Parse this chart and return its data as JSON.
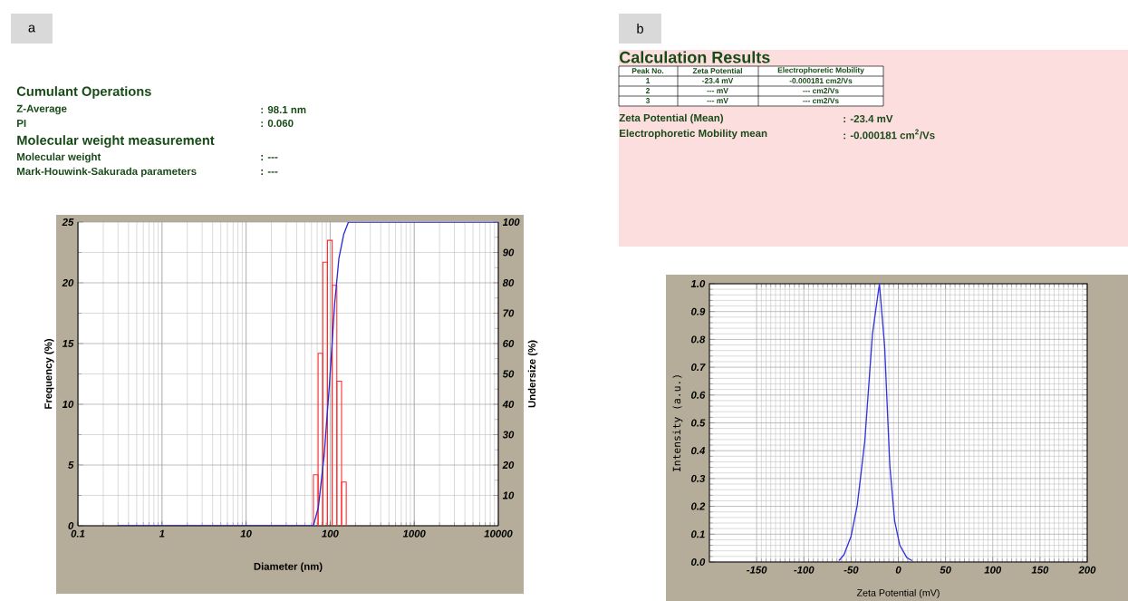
{
  "chart_data": [
    {
      "type": "other",
      "title": "a",
      "annotations": [
        "Cumulant Operations",
        "Z-Average",
        ": 98.1 nm",
        "PI",
        ": 0.060",
        "Molecular weight measurement",
        "Molecular weight",
        ": ---",
        "Mark-Houwink-Sakurada parameters",
        ": ---"
      ]
    },
    {
      "type": "histogram",
      "bins": [
        63.2,
        71.9,
        81.7,
        92.9,
        105.6,
        120.1,
        136.6,
        155.3
      ],
      "values": [
        4.2,
        14.2,
        21.7,
        23.5,
        19.8,
        11.9,
        3.6
      ],
      "color": "#ff2a2a",
      "series": [
        {
          "type": "line",
          "axis": "y2",
          "color": "#2b2bd6",
          "x": [
            0.3,
            63.2,
            72.3,
            84.7,
            98.3,
            113,
            127,
            145,
            165,
            10000
          ],
          "values": [
            0,
            0,
            6,
            23,
            47,
            73,
            88,
            96,
            100,
            100
          ]
        }
      ],
      "xlabel": "Diameter (nm)",
      "ylabel": "Frequency (%)",
      "y2label": "Undersize (%)",
      "log": "x",
      "xlim": [
        0.1,
        10000
      ],
      "xticks": [
        0.1,
        1,
        10,
        100,
        1000,
        10000
      ],
      "ylim": [
        0,
        25
      ],
      "yticks": [
        0,
        5,
        10,
        15,
        20,
        25
      ],
      "y2lim": [
        0,
        100
      ],
      "y2ticks": [
        10,
        20,
        30,
        40,
        50,
        60,
        70,
        80,
        90,
        100
      ],
      "grid": true,
      "marker": "none",
      "line_style": "solid"
    },
    {
      "type": "other",
      "title": "b",
      "annotations": [
        "Calculation Results",
        "Peak No.",
        "Zeta Potential",
        "Electrophoretic Mobility",
        "1",
        "-23.4 mV",
        "-0.000181 cm2/Vs",
        "2",
        "--- mV",
        "--- cm2/Vs",
        "3",
        "--- mV",
        "--- cm2/Vs",
        "Zeta Potential (Mean)",
        ": -23.4 mV",
        "Electrophoretic Mobility mean",
        ": -0.000181 cm$^{2}$/Vs"
      ]
    },
    {
      "type": "line",
      "x": [
        -62.9,
        -57.4,
        -50,
        -43.5,
        -35.5,
        -27.4,
        -20,
        -14.5,
        -9,
        -3.9,
        1.6,
        9,
        14.5
      ],
      "values": [
        0.005,
        0.027,
        0.093,
        0.203,
        0.434,
        0.819,
        1.0,
        0.775,
        0.346,
        0.148,
        0.06,
        0.016,
        0.005
      ],
      "color": "#3333dd",
      "xlabel": "Zeta Potential (mV)",
      "ylabel": "Intensity (a.u.)",
      "xlim": [
        -200,
        200
      ],
      "xticks": [
        -150,
        -100,
        -50,
        0,
        50,
        100,
        150,
        200
      ],
      "ylim": [
        0,
        1
      ],
      "yticks": [
        {
          "value": 0,
          "label": "0.0"
        },
        {
          "value": 0.1,
          "label": "0.1"
        },
        {
          "value": 0.2,
          "label": "0.2"
        },
        {
          "value": 0.3,
          "label": "0.3"
        },
        {
          "value": 0.4,
          "label": "0.4"
        },
        {
          "value": 0.5,
          "label": "0.5"
        },
        {
          "value": 0.6,
          "label": "0.6"
        },
        {
          "value": 0.7,
          "label": "0.7"
        },
        {
          "value": 0.8,
          "label": "0.8"
        },
        {
          "value": 0.9,
          "label": "0.9"
        },
        {
          "value": 1,
          "label": "1.0"
        }
      ],
      "grid": true,
      "marker": "none",
      "line_style": "solid"
    }
  ]
}
